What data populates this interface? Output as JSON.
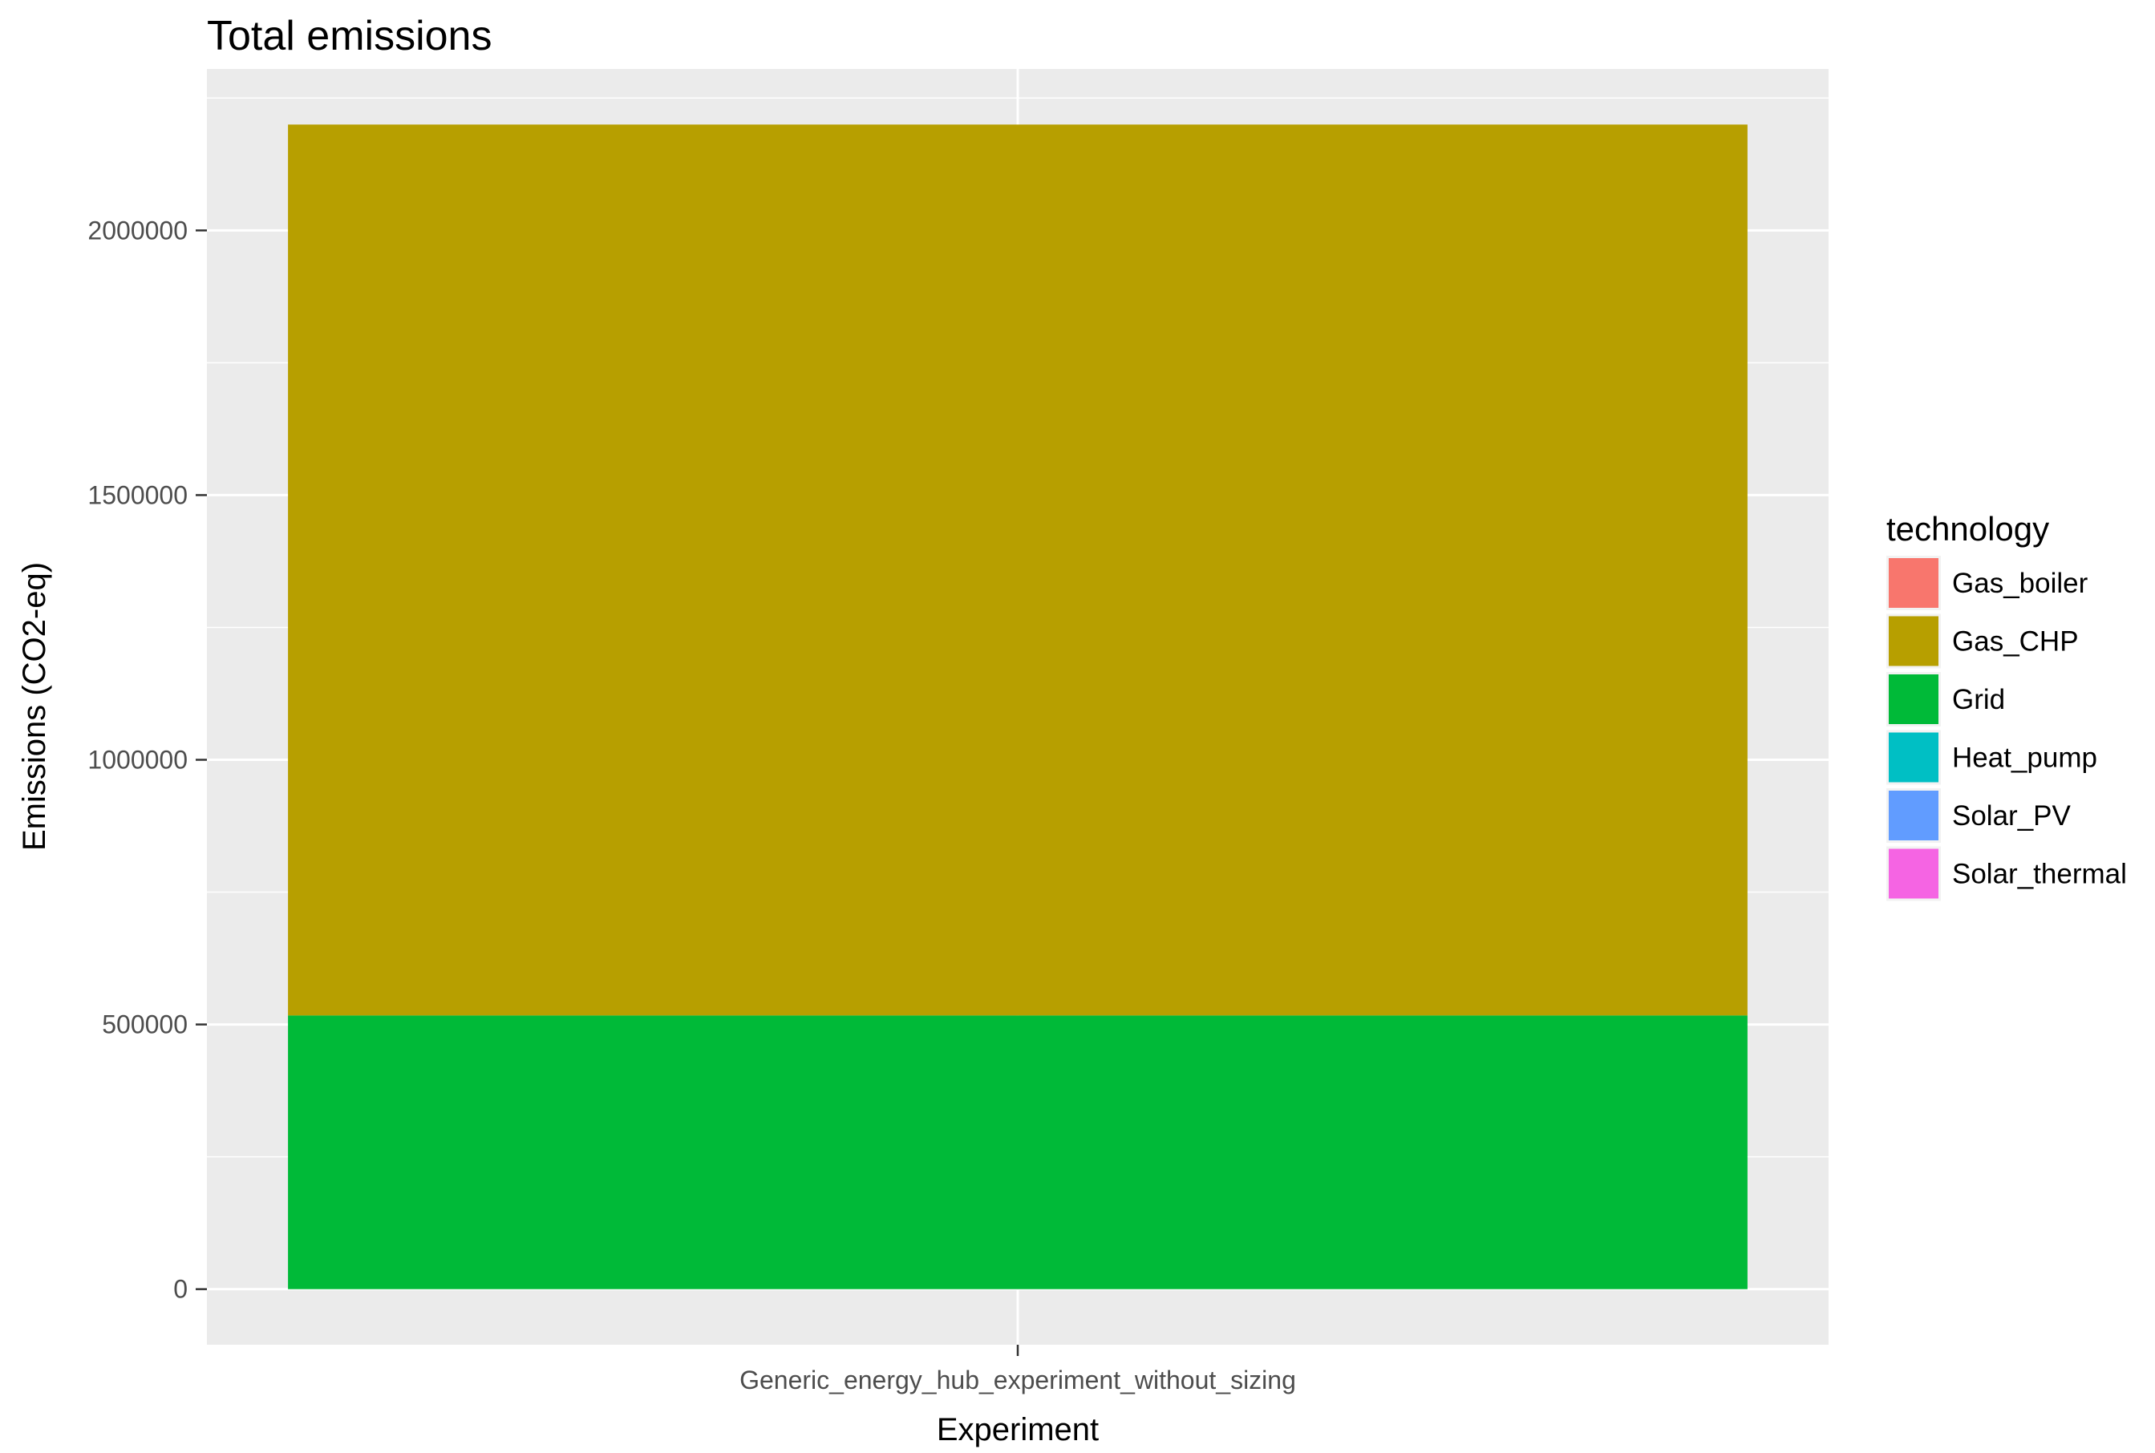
{
  "chart_data": {
    "type": "bar",
    "stacked": true,
    "title": "Total emissions",
    "xlabel": "Experiment",
    "ylabel": "Emissions (CO2-eq)",
    "categories": [
      "Generic_energy_hub_experiment_without_sizing"
    ],
    "ylim": [
      -105000,
      2305000
    ],
    "yticks": [
      0,
      500000,
      1000000,
      1500000,
      2000000
    ],
    "ytick_labels": [
      "0",
      "500000",
      "1000000",
      "1500000",
      "2000000"
    ],
    "grid": true,
    "legend": {
      "title": "technology",
      "position": "right",
      "entries": [
        {
          "name": "Gas_boiler",
          "color": "#F8766D"
        },
        {
          "name": "Gas_CHP",
          "color": "#B79F00"
        },
        {
          "name": "Grid",
          "color": "#00BA38"
        },
        {
          "name": "Heat_pump",
          "color": "#00BFC4"
        },
        {
          "name": "Solar_PV",
          "color": "#619CFF"
        },
        {
          "name": "Solar_thermal",
          "color": "#F564E3"
        }
      ]
    },
    "series": [
      {
        "name": "Gas_boiler",
        "values": [
          0
        ]
      },
      {
        "name": "Gas_CHP",
        "values": [
          1683000
        ]
      },
      {
        "name": "Grid",
        "values": [
          517000
        ]
      },
      {
        "name": "Heat_pump",
        "values": [
          0
        ]
      },
      {
        "name": "Solar_PV",
        "values": [
          0
        ]
      },
      {
        "name": "Solar_thermal",
        "values": [
          0
        ]
      }
    ],
    "stack_order_bottom_to_top": [
      "Grid",
      "Gas_CHP"
    ]
  }
}
